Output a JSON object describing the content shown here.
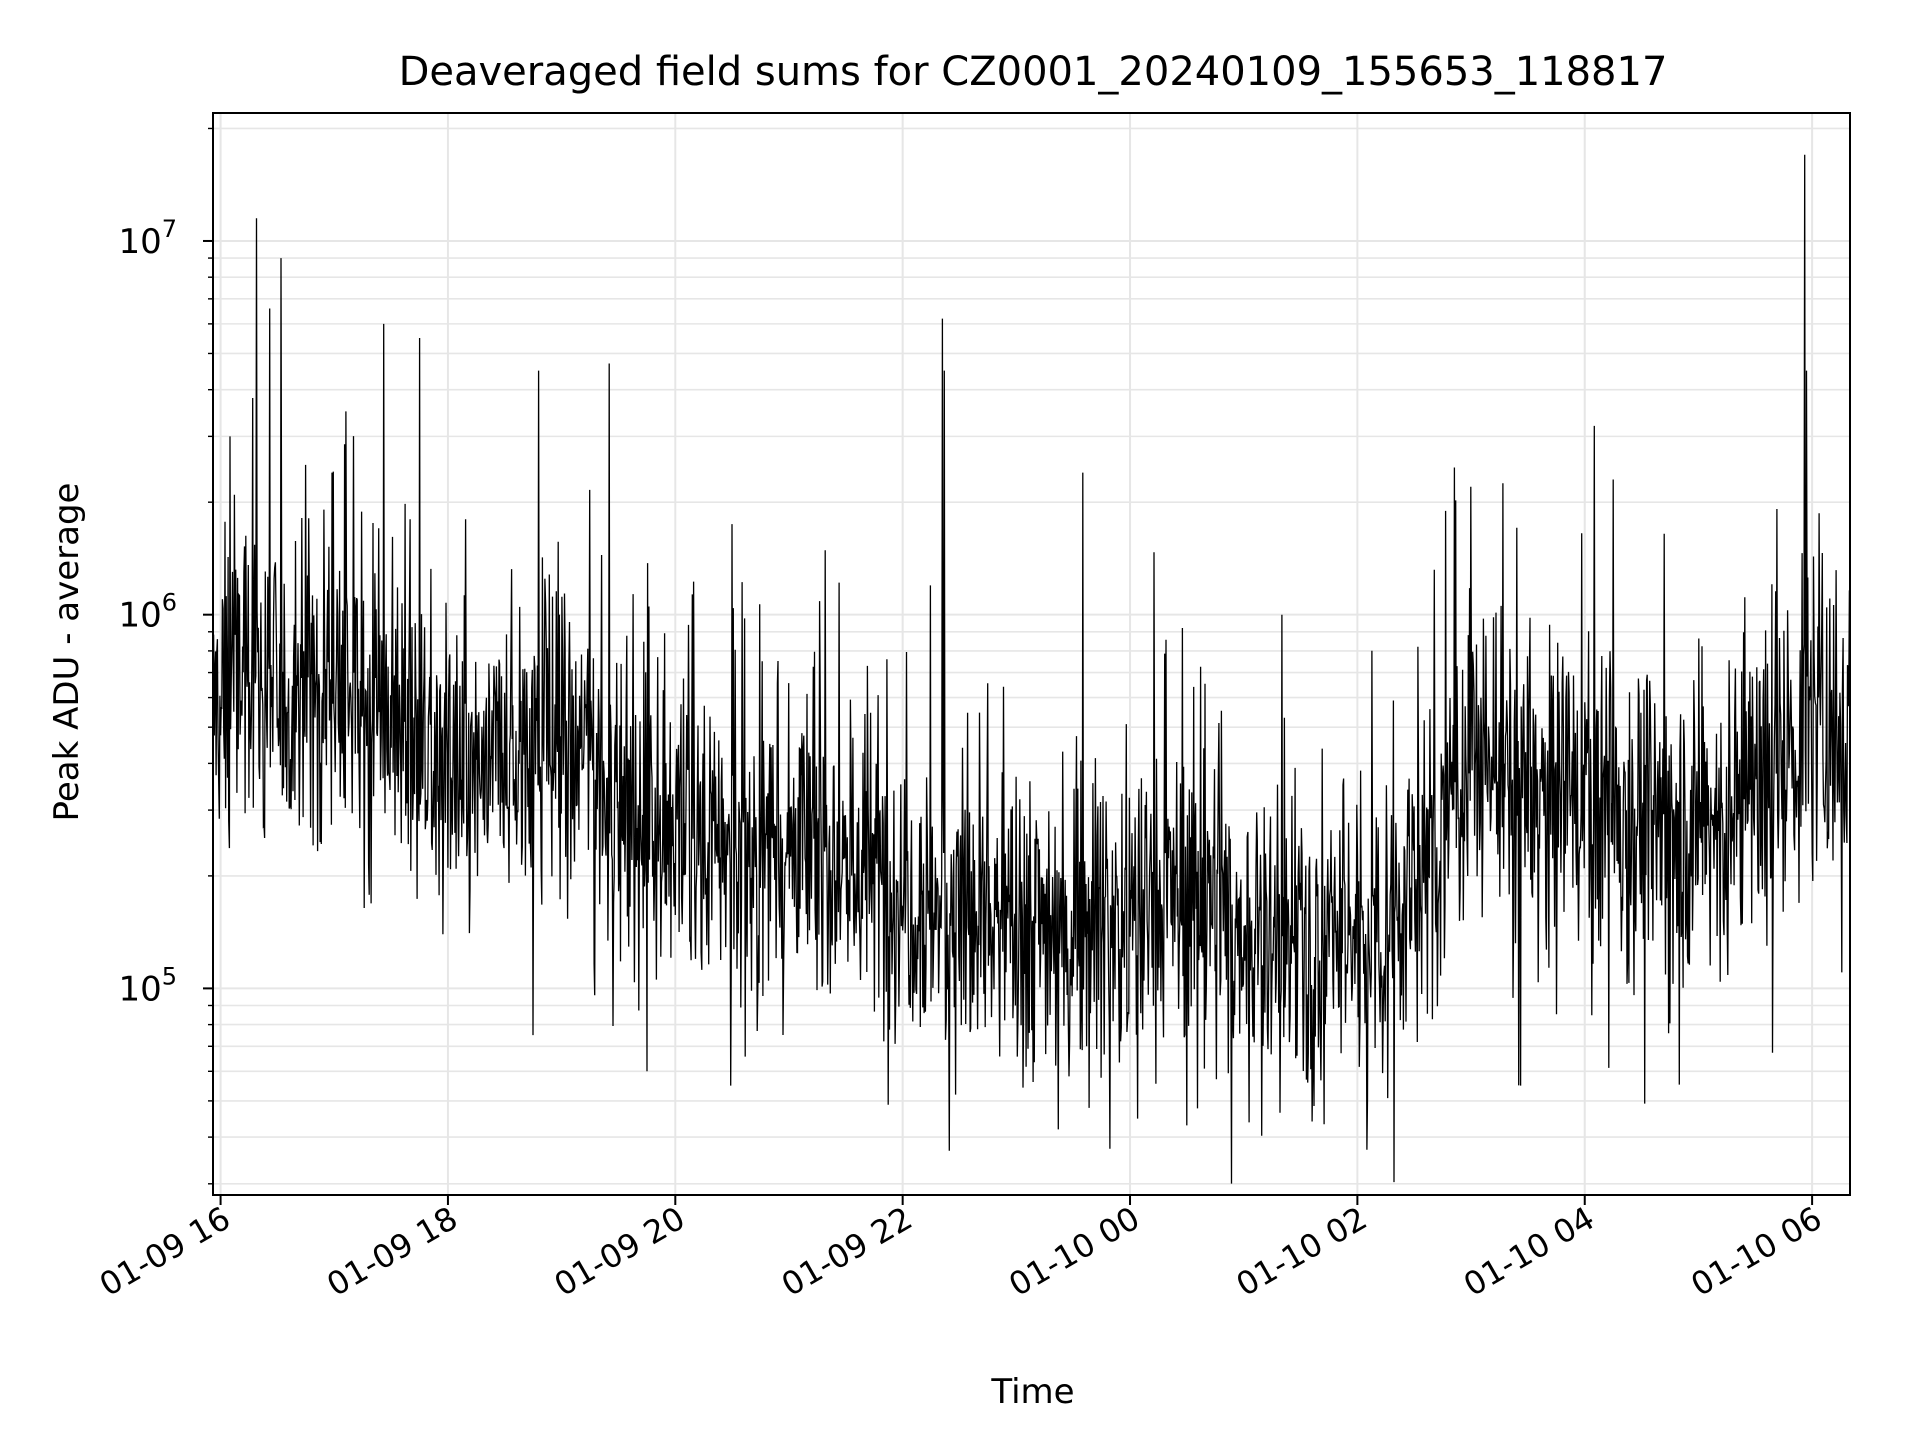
{
  "chart_data": {
    "type": "line",
    "title": "Deaveraged field sums for CZ0001_20240109_155653_118817",
    "xlabel": "Time",
    "ylabel": "Peak ADU - average",
    "yscale": "log",
    "ylim": [
      28000,
      22000000
    ],
    "xlim": [
      "2024-01-09 15:56",
      "2024-01-10 06:20"
    ],
    "grid": true,
    "line_color": "#000000",
    "grid_color": "#e6e6e6",
    "x_ticks": [
      {
        "t": "2024-01-09 16:00",
        "label": "01-09 16"
      },
      {
        "t": "2024-01-09 18:00",
        "label": "01-09 18"
      },
      {
        "t": "2024-01-09 20:00",
        "label": "01-09 20"
      },
      {
        "t": "2024-01-09 22:00",
        "label": "01-09 22"
      },
      {
        "t": "2024-01-10 00:00",
        "label": "01-10 00"
      },
      {
        "t": "2024-01-10 02:00",
        "label": "01-10 02"
      },
      {
        "t": "2024-01-10 04:00",
        "label": "01-10 04"
      },
      {
        "t": "2024-01-10 06:00",
        "label": "01-10 06"
      }
    ],
    "y_ticks": [
      {
        "value": 100000,
        "base": "10",
        "exp": "5"
      },
      {
        "value": 1000000,
        "base": "10",
        "exp": "6"
      },
      {
        "value": 10000000,
        "base": "10",
        "exp": "7"
      }
    ],
    "series": [
      {
        "x": [
          "2024-01-09 15:56",
          "2024-01-09 16:05",
          "2024-01-09 16:15",
          "2024-01-09 16:25",
          "2024-01-09 16:35",
          "2024-01-09 16:45",
          "2024-01-09 17:00",
          "2024-01-09 17:15",
          "2024-01-09 17:30",
          "2024-01-09 17:45",
          "2024-01-09 18:00",
          "2024-01-09 18:15",
          "2024-01-09 18:30",
          "2024-01-09 18:45",
          "2024-01-09 19:00",
          "2024-01-09 19:15",
          "2024-01-09 19:30",
          "2024-01-09 19:45",
          "2024-01-09 20:00",
          "2024-01-09 20:30",
          "2024-01-09 21:00",
          "2024-01-09 21:30",
          "2024-01-09 22:00",
          "2024-01-09 22:30",
          "2024-01-09 23:00",
          "2024-01-09 23:30",
          "2024-01-10 00:00",
          "2024-01-10 00:30",
          "2024-01-10 01:00",
          "2024-01-10 01:30",
          "2024-01-10 02:00",
          "2024-01-10 02:30",
          "2024-01-10 03:00",
          "2024-01-10 03:30",
          "2024-01-10 04:00",
          "2024-01-10 04:30",
          "2024-01-10 05:00",
          "2024-01-10 05:30",
          "2024-01-10 06:00",
          "2024-01-10 06:20"
        ],
        "y": [
          550000,
          650000,
          700000,
          650000,
          550000,
          650000,
          750000,
          550000,
          500000,
          480000,
          380000,
          350000,
          400000,
          480000,
          450000,
          450000,
          280000,
          250000,
          260000,
          230000,
          250000,
          220000,
          190000,
          160000,
          150000,
          160000,
          150000,
          190000,
          140000,
          125000,
          140000,
          170000,
          450000,
          320000,
          330000,
          280000,
          270000,
          330000,
          500000,
          520000
        ]
      }
    ],
    "spikes": [
      {
        "t": "2024-01-09 16:05",
        "y": 3000000
      },
      {
        "t": "2024-01-09 16:17",
        "y": 3800000
      },
      {
        "t": "2024-01-09 16:19",
        "y": 11500000
      },
      {
        "t": "2024-01-09 16:32",
        "y": 9000000
      },
      {
        "t": "2024-01-09 17:06",
        "y": 3500000
      },
      {
        "t": "2024-01-09 17:26",
        "y": 6000000
      },
      {
        "t": "2024-01-09 17:45",
        "y": 5500000
      },
      {
        "t": "2024-01-09 18:45",
        "y": 5400000
      },
      {
        "t": "2024-01-09 18:48",
        "y": 4500000
      },
      {
        "t": "2024-01-09 19:25",
        "y": 4700000
      },
      {
        "t": "2024-01-09 22:21",
        "y": 6200000
      },
      {
        "t": "2024-01-09 22:22",
        "y": 4500000
      },
      {
        "t": "2024-01-09 23:35",
        "y": 2400000
      },
      {
        "t": "2024-01-10 03:00",
        "y": 2200000
      },
      {
        "t": "2024-01-10 04:05",
        "y": 3200000
      },
      {
        "t": "2024-01-10 04:15",
        "y": 2300000
      },
      {
        "t": "2024-01-10 05:56",
        "y": 17000000
      },
      {
        "t": "2024-01-10 05:57",
        "y": 4500000
      }
    ],
    "dips": [
      {
        "t": "2024-01-09 18:45",
        "y": 75000
      },
      {
        "t": "2024-01-09 19:45",
        "y": 60000
      },
      {
        "t": "2024-01-10 00:30",
        "y": 43000
      },
      {
        "t": "2024-01-10 02:05",
        "y": 37000
      },
      {
        "t": "2024-01-10 03:25",
        "y": 55000
      }
    ]
  }
}
